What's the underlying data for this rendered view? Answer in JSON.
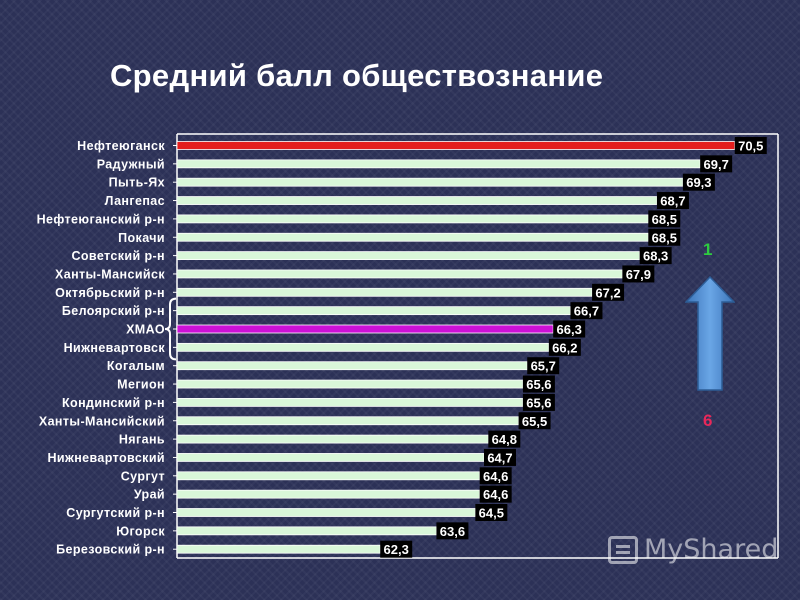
{
  "slide": {
    "title": "Средний балл обществознание",
    "rank_top": "1",
    "rank_bottom": "6",
    "watermark": "MyShared"
  },
  "colors": {
    "bar_default": "#d9f7d9",
    "bar_top": "#e41e1e",
    "bar_highlight": "#cc11d6",
    "label_bg": "#000000",
    "arrow": "#4e90d6",
    "frame": "#ffffff"
  },
  "chart_data": {
    "type": "bar",
    "orientation": "horizontal",
    "title": "Средний балл обществознание",
    "categories": [
      "Нефтеюганск",
      "Радужный",
      "Пыть-Ях",
      "Лангепас",
      "Нефтеюганский р-н",
      "Покачи",
      "Советский р-н",
      "Ханты-Мансийск",
      "Октябрьский р-н",
      "Белоярский р-н",
      "ХМАО",
      "Нижневартовск",
      "Когалым",
      "Мегион",
      "Кондинский р-н",
      "Ханты-Мансийский",
      "Нягань",
      "Нижневартовский",
      "Сургут",
      "Урай",
      "Сургутский р-н",
      "Югорск",
      "Березовский р-н"
    ],
    "values": [
      70.5,
      69.7,
      69.3,
      68.7,
      68.5,
      68.5,
      68.3,
      67.9,
      67.2,
      66.7,
      66.3,
      66.2,
      65.7,
      65.6,
      65.6,
      65.5,
      64.8,
      64.7,
      64.6,
      64.6,
      64.5,
      63.6,
      62.3
    ],
    "value_labels": [
      "70,5",
      "69,7",
      "69,3",
      "68,7",
      "68,5",
      "68,5",
      "68,3",
      "67,9",
      "67,2",
      "66,7",
      "66,3",
      "66,2",
      "65,7",
      "65,6",
      "65,6",
      "65,5",
      "64,8",
      "64,7",
      "64,6",
      "64,6",
      "64,5",
      "63,6",
      "62,3"
    ],
    "highlight_top": "Нефтеюганск",
    "highlight_region": "ХМАО",
    "xlim": [
      57.6,
      71.5
    ],
    "xlabel": "",
    "ylabel": "",
    "grid": false,
    "legend": "none"
  }
}
